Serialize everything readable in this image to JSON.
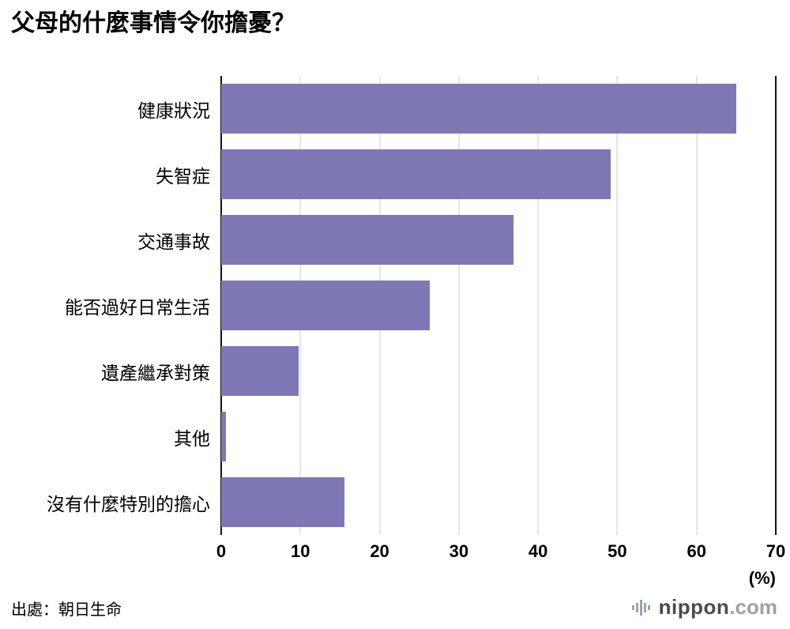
{
  "title": "父母的什麼事情令你擔憂？",
  "source": "出處：朝日生命",
  "footer_logo": {
    "name": "nippon",
    "domain": ".com",
    "icon": "nippon-soundwave-icon"
  },
  "axis": {
    "unit_label": "(%)",
    "ticks": [
      0,
      10,
      20,
      30,
      40,
      50,
      60,
      70
    ],
    "max": 70
  },
  "colors": {
    "bar": "#7d78b5",
    "grid": "#cccccc",
    "axis": "#111111",
    "logo_icon": "#9aa3ab"
  },
  "chart_data": {
    "type": "bar",
    "orientation": "horizontal",
    "title": "父母的什麼事情令你擔憂？",
    "categories": [
      "健康狀況",
      "失智症",
      "交通事故",
      "能否過好日常生活",
      "遺產繼承對策",
      "其他",
      "沒有什麼特別的擔心"
    ],
    "values": [
      65.0,
      49.2,
      36.9,
      26.3,
      9.8,
      0.6,
      15.6
    ],
    "xlabel": "(%)",
    "ylabel": "",
    "xlim": [
      0,
      70
    ],
    "grid": true,
    "legend": false
  }
}
